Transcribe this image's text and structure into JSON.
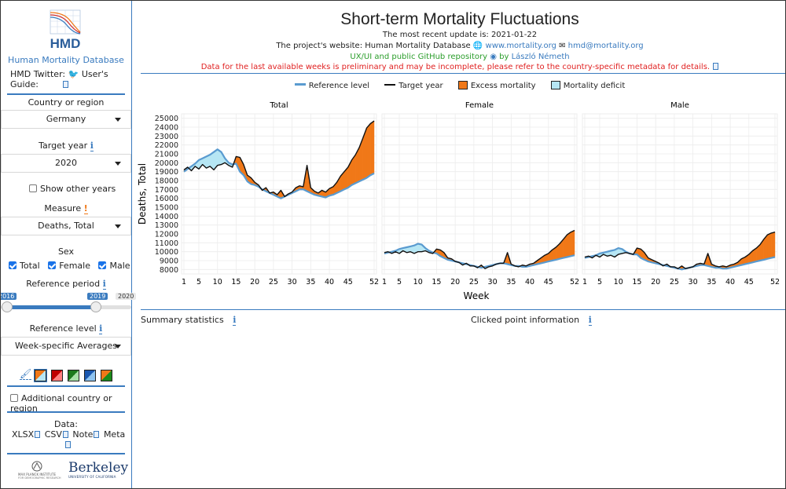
{
  "sidebar": {
    "logo_text": "HMD",
    "org_name": "Human Mortality Database",
    "twitter_label": "HMD Twitter:",
    "guide_label": "User's Guide:",
    "country_label": "Country or region",
    "country_value": "Germany",
    "target_year_label": "Target year",
    "target_year_value": "2020",
    "show_other_years": "Show other years",
    "measure_label": "Measure",
    "measure_value": "Deaths, Total",
    "sex_label": "Sex",
    "sex_total": "Total",
    "sex_female": "Female",
    "sex_male": "Male",
    "ref_period_label": "Reference period",
    "slider_min": "2016",
    "slider_from": "2019",
    "slider_to": "2020",
    "ref_level_label": "Reference level",
    "ref_level_value": "Week-specific Averages",
    "additional_country": "Additional country or region",
    "data_label": "Data:",
    "data_xlsx": "XLSX",
    "data_csv": "CSV",
    "data_note": "Note",
    "data_meta": "Meta",
    "mpi_line1": "MAX PLANCK INSTITUTE",
    "mpi_line2": "FOR DEMOGRAPHIC RESEARCH",
    "berkeley": "Berkeley",
    "berkeley_sub": "UNIVERSITY OF CALIFORNIA",
    "info_glyph": "i",
    "warn_glyph": "!"
  },
  "header": {
    "title": "Short-term Mortality Fluctuations",
    "update_line": "The most recent update is: 2021-01-22",
    "website_prefix": "The project's website: Human Mortality Database",
    "website_url": "www.mortality.org",
    "email": "hmd@mortality.org",
    "github_line": "UX/UI and public GitHub repository",
    "github_by": "by",
    "author": "László Németh",
    "warning": "Data for the last available weeks is preliminary and may be incomplete, please refer to the country-specific metadata for details."
  },
  "legend": {
    "reference": "Reference level",
    "target": "Target year",
    "excess": "Excess mortality",
    "deficit": "Mortality deficit"
  },
  "summary": {
    "left": "Summary statistics",
    "right": "Clicked point information"
  },
  "colors": {
    "excess": "#f07818",
    "deficit": "#b6e6f4",
    "reference": "#5a9bd0",
    "target": "#111111",
    "accent": "#3a7bbf"
  },
  "chart_data": {
    "type": "area",
    "title": "",
    "ylabel": "Deaths, Total",
    "xlabel": "Week",
    "ylim": [
      7500,
      25500
    ],
    "xlim": [
      1,
      52
    ],
    "x_ticks": [
      1,
      5,
      10,
      15,
      20,
      25,
      30,
      35,
      40,
      45,
      52
    ],
    "y_ticks": [
      8000,
      9000,
      10000,
      11000,
      12000,
      13000,
      14000,
      15000,
      16000,
      17000,
      18000,
      19000,
      20000,
      21000,
      22000,
      23000,
      24000,
      25000
    ],
    "panels": [
      {
        "name": "Total",
        "reference": [
          19000,
          19300,
          19600,
          19900,
          20300,
          20500,
          20700,
          20900,
          21200,
          21500,
          21200,
          20500,
          20000,
          19800,
          19900,
          19000,
          18600,
          17900,
          17600,
          17500,
          17300,
          17000,
          16800,
          16600,
          16400,
          16200,
          16000,
          16200,
          16400,
          16600,
          16800,
          17000,
          17000,
          16800,
          16600,
          16400,
          16300,
          16200,
          16100,
          16300,
          16400,
          16600,
          16800,
          17000,
          17200,
          17500,
          17700,
          17900,
          18100,
          18300,
          18600,
          18800
        ],
        "target": [
          19200,
          19500,
          19100,
          19600,
          19300,
          19800,
          19400,
          19600,
          19200,
          19700,
          19800,
          20000,
          19700,
          19500,
          20700,
          20600,
          19800,
          18600,
          18300,
          17800,
          17500,
          16900,
          17200,
          16600,
          16700,
          16400,
          16900,
          16200,
          16500,
          16700,
          17200,
          17400,
          17300,
          19700,
          17200,
          16800,
          16600,
          16900,
          16700,
          17100,
          17300,
          17800,
          18500,
          19000,
          19500,
          20300,
          20900,
          21700,
          22800,
          23900,
          24400,
          24700
        ]
      },
      {
        "name": "Female",
        "reference": [
          9800,
          9900,
          10000,
          10100,
          10300,
          10400,
          10500,
          10600,
          10700,
          10900,
          10800,
          10400,
          10100,
          9900,
          9800,
          9500,
          9300,
          9100,
          9000,
          8900,
          8800,
          8700,
          8600,
          8500,
          8400,
          8300,
          8200,
          8300,
          8400,
          8500,
          8600,
          8700,
          8700,
          8600,
          8500,
          8400,
          8400,
          8300,
          8300,
          8400,
          8500,
          8600,
          8700,
          8800,
          8900,
          9000,
          9100,
          9200,
          9300,
          9400,
          9500,
          9600
        ],
        "target": [
          9900,
          10000,
          9800,
          10000,
          9800,
          10100,
          9900,
          10000,
          9800,
          10000,
          10000,
          10100,
          9900,
          9800,
          10300,
          10200,
          9900,
          9300,
          9200,
          8900,
          8800,
          8500,
          8700,
          8400,
          8400,
          8200,
          8500,
          8100,
          8300,
          8400,
          8600,
          8700,
          8700,
          9900,
          8600,
          8400,
          8300,
          8500,
          8400,
          8600,
          8700,
          9000,
          9300,
          9600,
          9800,
          10200,
          10500,
          10900,
          11400,
          11900,
          12200,
          12400
        ]
      },
      {
        "name": "Male",
        "reference": [
          9300,
          9400,
          9500,
          9600,
          9800,
          9900,
          10000,
          10100,
          10200,
          10400,
          10300,
          10000,
          9800,
          9700,
          9700,
          9300,
          9100,
          8900,
          8800,
          8700,
          8600,
          8500,
          8400,
          8300,
          8200,
          8100,
          8000,
          8100,
          8200,
          8300,
          8400,
          8500,
          8500,
          8400,
          8300,
          8200,
          8200,
          8100,
          8100,
          8200,
          8300,
          8400,
          8500,
          8600,
          8700,
          8800,
          8900,
          9000,
          9100,
          9200,
          9300,
          9400
        ],
        "target": [
          9400,
          9500,
          9300,
          9600,
          9400,
          9700,
          9500,
          9600,
          9400,
          9700,
          9800,
          9900,
          9800,
          9700,
          10400,
          10300,
          9900,
          9300,
          9100,
          8900,
          8700,
          8400,
          8600,
          8300,
          8300,
          8100,
          8400,
          8100,
          8200,
          8300,
          8600,
          8700,
          8600,
          9800,
          8600,
          8400,
          8300,
          8400,
          8300,
          8500,
          8600,
          8800,
          9200,
          9400,
          9700,
          10100,
          10400,
          10800,
          11400,
          11900,
          12100,
          12200
        ]
      }
    ]
  }
}
